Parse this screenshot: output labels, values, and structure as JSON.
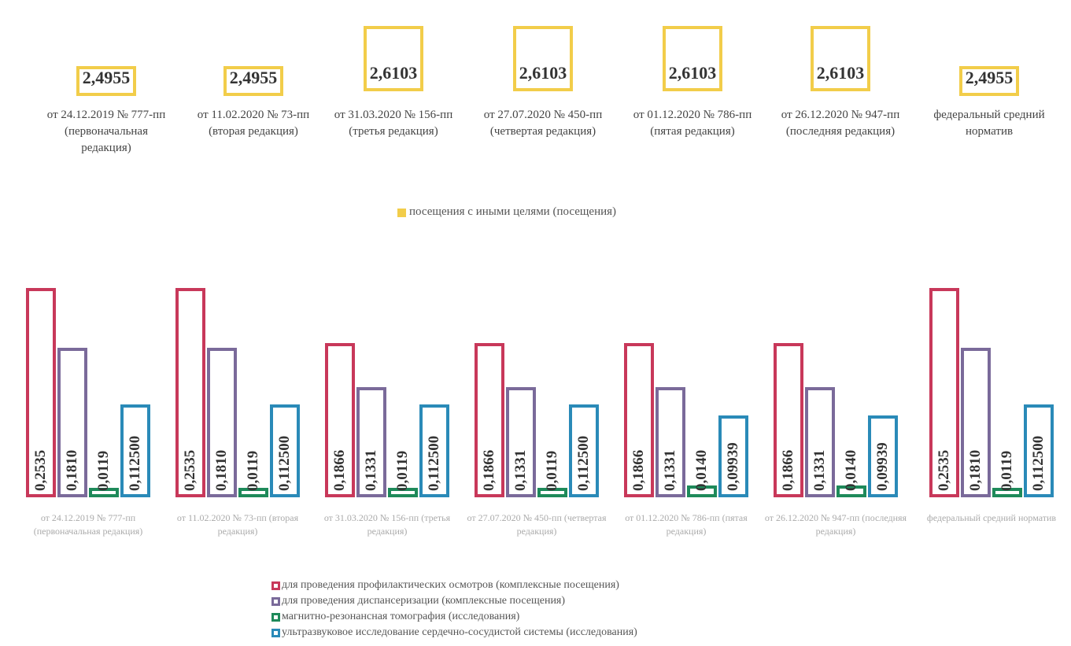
{
  "chart_data": [
    {
      "type": "bar",
      "categories": [
        "от 24.12.2019 № 777-пп (первоначальная редакция)",
        "от 11.02.2020 № 73-пп (вторая редакция)",
        "от 31.03.2020 № 156-пп (третья редакция)",
        "от 27.07.2020 № 450-пп (четвертая редакция)",
        "от 01.12.2020 № 786-пп (пятая редакция)",
        "от 26.12.2020 № 947-пп (последняя редакция)",
        "федеральный средний норматив"
      ],
      "series": [
        {
          "name": "посещения с иными целями (посещения)",
          "color": "#f2cd4a",
          "values": [
            2.4955,
            2.4955,
            2.6103,
            2.6103,
            2.6103,
            2.6103,
            2.4955
          ],
          "value_labels": [
            "2,4955",
            "2,4955",
            "2,6103",
            "2,6103",
            "2,6103",
            "2,6103",
            "2,4955"
          ]
        }
      ]
    },
    {
      "type": "bar",
      "categories": [
        "от 24.12.2019 № 777-пп (первоначальная редакция)",
        "от 11.02.2020 № 73-пп (вторая редакция)",
        "от 31.03.2020 № 156-пп (третья редакция)",
        "от 27.07.2020 № 450-пп (четвертая редакция)",
        "от 01.12.2020 № 786-пп (пятая редакция)",
        "от 26.12.2020 № 947-пп (последняя редакция)",
        "федеральный средний норматив"
      ],
      "series": [
        {
          "name": "для проведения профилактических осмотров (комплексные посещения)",
          "color": "#c8385a",
          "values": [
            0.2535,
            0.2535,
            0.1866,
            0.1866,
            0.1866,
            0.1866,
            0.2535
          ],
          "value_labels": [
            "0,2535",
            "0,2535",
            "0,1866",
            "0,1866",
            "0,1866",
            "0,1866",
            "0,2535"
          ]
        },
        {
          "name": "для проведения диспансеризации (комплексные посещения)",
          "color": "#7a6a9a",
          "values": [
            0.181,
            0.181,
            0.1331,
            0.1331,
            0.1331,
            0.1331,
            0.181
          ],
          "value_labels": [
            "0,1810",
            "0,1810",
            "0,1331",
            "0,1331",
            "0,1331",
            "0,1331",
            "0,1810"
          ]
        },
        {
          "name": "магнитно-резонансная томография (исследования)",
          "color": "#1e8a5a",
          "values": [
            0.0119,
            0.0119,
            0.0119,
            0.0119,
            0.014,
            0.014,
            0.0119
          ],
          "value_labels": [
            "0,0119",
            "0,0119",
            "0,0119",
            "0,0119",
            "0,0140",
            "0,0140",
            "0,0119"
          ]
        },
        {
          "name": "ультразвуковое исследование сердечно-сосудистой системы (исследования)",
          "color": "#2a8ab8",
          "values": [
            0.1125,
            0.1125,
            0.1125,
            0.1125,
            0.09939,
            0.09939,
            0.1125
          ],
          "value_labels": [
            "0,112500",
            "0,112500",
            "0,112500",
            "0,112500",
            "0,09939",
            "0,09939",
            "0,112500"
          ]
        }
      ]
    }
  ]
}
